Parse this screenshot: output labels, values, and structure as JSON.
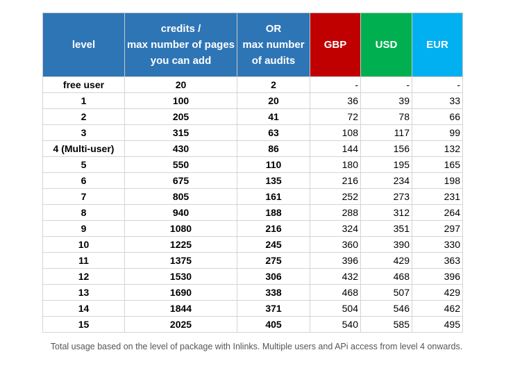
{
  "table": {
    "headers": [
      [
        "level"
      ],
      [
        "credits /",
        "max number of pages",
        "you can add"
      ],
      [
        "OR",
        "max number",
        "of audits"
      ],
      [
        "GBP"
      ],
      [
        "USD"
      ],
      [
        "EUR"
      ]
    ],
    "header_colors": {
      "blue": "#2e75b6",
      "gbp": "#c00000",
      "usd": "#00b050",
      "eur": "#00b0f0"
    },
    "rows": [
      [
        "free user",
        "20",
        "2",
        "-",
        "-",
        "-"
      ],
      [
        "1",
        "100",
        "20",
        "36",
        "39",
        "33"
      ],
      [
        "2",
        "205",
        "41",
        "72",
        "78",
        "66"
      ],
      [
        "3",
        "315",
        "63",
        "108",
        "117",
        "99"
      ],
      [
        "4 (Multi-user)",
        "430",
        "86",
        "144",
        "156",
        "132"
      ],
      [
        "5",
        "550",
        "110",
        "180",
        "195",
        "165"
      ],
      [
        "6",
        "675",
        "135",
        "216",
        "234",
        "198"
      ],
      [
        "7",
        "805",
        "161",
        "252",
        "273",
        "231"
      ],
      [
        "8",
        "940",
        "188",
        "288",
        "312",
        "264"
      ],
      [
        "9",
        "1080",
        "216",
        "324",
        "351",
        "297"
      ],
      [
        "10",
        "1225",
        "245",
        "360",
        "390",
        "330"
      ],
      [
        "11",
        "1375",
        "275",
        "396",
        "429",
        "363"
      ],
      [
        "12",
        "1530",
        "306",
        "432",
        "468",
        "396"
      ],
      [
        "13",
        "1690",
        "338",
        "468",
        "507",
        "429"
      ],
      [
        "14",
        "1844",
        "371",
        "504",
        "546",
        "462"
      ],
      [
        "15",
        "2025",
        "405",
        "540",
        "585",
        "495"
      ]
    ]
  },
  "caption": "Total usage based on the level of package with Inlinks. Multiple users and APi access from level 4 onwards."
}
